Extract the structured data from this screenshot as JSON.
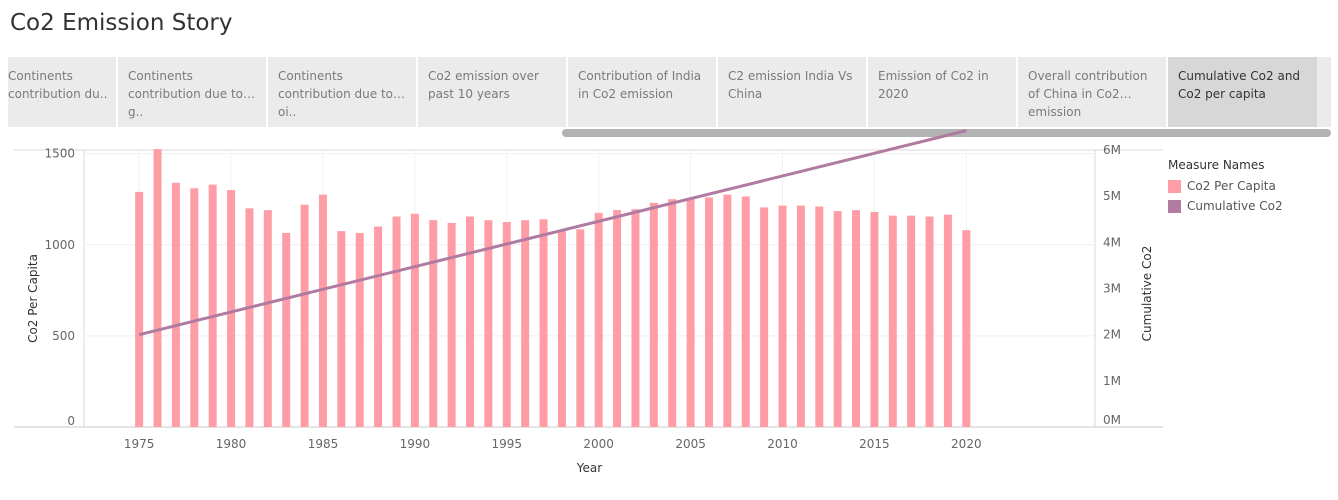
{
  "story": {
    "title": "Co2 Emission Story",
    "story_points": [
      "Continents contribution du..",
      "Continents contribution due to g..",
      "Continents contribution due to oi..",
      "Co2 emission over past 10 years",
      "Contribution of India in Co2 emission",
      "C2 emission India Vs China",
      "Emission of Co2 in 2020",
      "Overall contribution of China in Co2 emission",
      "Cumulative Co2 and Co2 per capita"
    ],
    "active_index": 8
  },
  "legend": {
    "title": "Measure Names",
    "items": [
      {
        "label": "Co2 Per Capita",
        "color": "#ff9da7"
      },
      {
        "label": "Cumulative Co2",
        "color": "#b07aa1"
      }
    ]
  },
  "chart_data": {
    "type": "bar",
    "xlabel": "Year",
    "ylabel": "Co2 Per Capita",
    "y2label": "Cumulative Co2",
    "x": [
      1975,
      1976,
      1977,
      1978,
      1979,
      1980,
      1981,
      1982,
      1983,
      1984,
      1985,
      1986,
      1987,
      1988,
      1989,
      1990,
      1991,
      1992,
      1993,
      1994,
      1995,
      1996,
      1997,
      1998,
      1999,
      2000,
      2001,
      2002,
      2003,
      2004,
      2005,
      2006,
      2007,
      2008,
      2009,
      2010,
      2011,
      2012,
      2013,
      2014,
      2015,
      2016,
      2017,
      2018,
      2019,
      2020
    ],
    "xticks": [
      1975,
      1980,
      1985,
      1990,
      1995,
      2000,
      2005,
      2010,
      2015,
      2020
    ],
    "xlim": [
      1972,
      2027
    ],
    "ylim": [
      0,
      1520
    ],
    "yticks": [
      0,
      500,
      1000,
      1500
    ],
    "y2lim": [
      0,
      6000000
    ],
    "y2ticks": [
      0,
      1000000,
      2000000,
      3000000,
      4000000,
      5000000,
      6000000
    ],
    "y2ticklabels": [
      "0M",
      "1M",
      "2M",
      "3M",
      "4M",
      "5M",
      "6M"
    ],
    "series": [
      {
        "name": "Co2 Per Capita",
        "type": "bar",
        "axis": "left",
        "color": "#ff9da7",
        "values": [
          1290,
          1525,
          1340,
          1310,
          1330,
          1300,
          1200,
          1190,
          1065,
          1220,
          1275,
          1075,
          1065,
          1100,
          1155,
          1170,
          1135,
          1120,
          1155,
          1135,
          1125,
          1135,
          1140,
          1075,
          1085,
          1175,
          1190,
          1195,
          1230,
          1250,
          1250,
          1260,
          1275,
          1265,
          1205,
          1215,
          1215,
          1210,
          1185,
          1190,
          1180,
          1160,
          1160,
          1155,
          1165,
          1080
        ]
      },
      {
        "name": "Cumulative Co2",
        "type": "line",
        "axis": "right",
        "color": "#b07aa1",
        "x": [
          1975,
          2020
        ],
        "values": [
          2000000,
          6420000
        ]
      }
    ]
  }
}
